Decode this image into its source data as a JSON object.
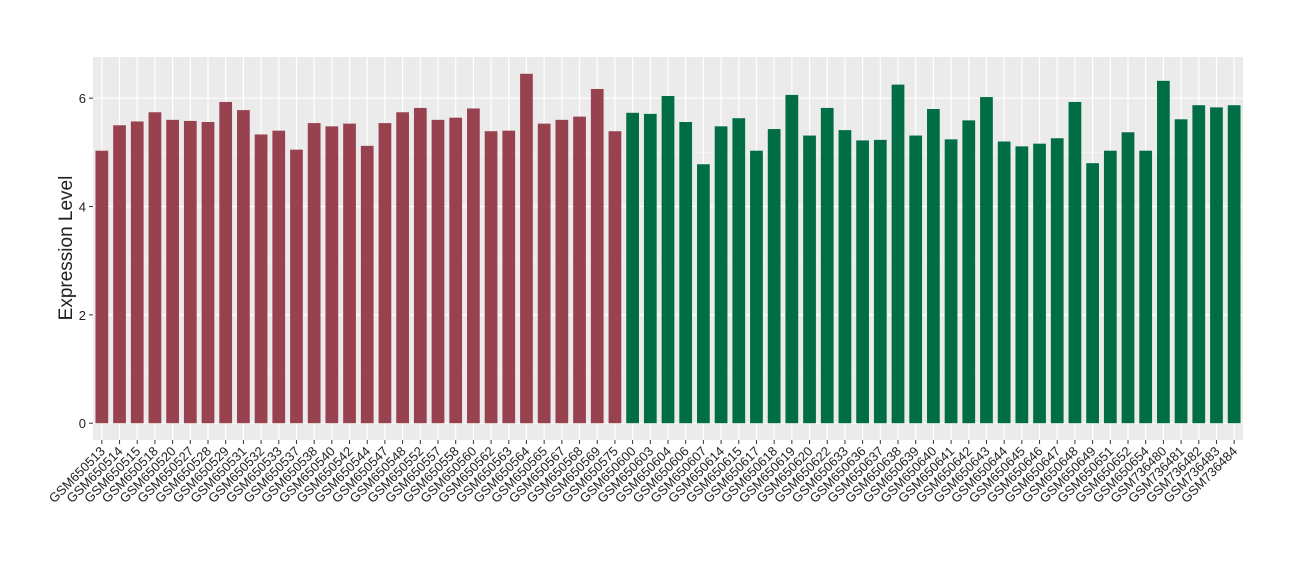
{
  "chart_data": {
    "type": "bar",
    "y_label": "Expression Level",
    "categories": [
      "GSM650513",
      "GSM650514",
      "GSM650515",
      "GSM650518",
      "GSM650520",
      "GSM650527",
      "GSM650528",
      "GSM650529",
      "GSM650531",
      "GSM650532",
      "GSM650533",
      "GSM650537",
      "GSM650538",
      "GSM650540",
      "GSM650542",
      "GSM650544",
      "GSM650547",
      "GSM650548",
      "GSM650552",
      "GSM650557",
      "GSM650558",
      "GSM650560",
      "GSM650562",
      "GSM650563",
      "GSM650564",
      "GSM650565",
      "GSM650567",
      "GSM650568",
      "GSM650569",
      "GSM650575",
      "GSM650600",
      "GSM650603",
      "GSM650604",
      "GSM650606",
      "GSM650607",
      "GSM650614",
      "GSM650615",
      "GSM650617",
      "GSM650618",
      "GSM650619",
      "GSM650620",
      "GSM650622",
      "GSM650633",
      "GSM650636",
      "GSM650637",
      "GSM650638",
      "GSM650639",
      "GSM650640",
      "GSM650641",
      "GSM650642",
      "GSM650643",
      "GSM650644",
      "GSM650645",
      "GSM650646",
      "GSM650647",
      "GSM650648",
      "GSM650649",
      "GSM650651",
      "GSM650652",
      "GSM650654",
      "GSM736480",
      "GSM736481",
      "GSM736482",
      "GSM736483",
      "GSM736484"
    ],
    "values": [
      5.03,
      5.5,
      5.57,
      5.74,
      5.6,
      5.58,
      5.56,
      5.93,
      5.78,
      5.33,
      5.4,
      5.05,
      5.54,
      5.48,
      5.53,
      5.12,
      5.54,
      5.74,
      5.82,
      5.6,
      5.64,
      5.81,
      5.39,
      5.4,
      6.45,
      5.53,
      5.6,
      5.66,
      6.17,
      5.39,
      5.73,
      5.71,
      6.04,
      5.56,
      4.78,
      5.48,
      5.63,
      5.03,
      5.43,
      6.06,
      5.31,
      5.82,
      5.41,
      5.22,
      5.23,
      6.25,
      5.31,
      5.8,
      5.24,
      5.59,
      6.02,
      5.2,
      5.11,
      5.16,
      5.26,
      5.93,
      4.8,
      5.03,
      5.37,
      5.03,
      6.32,
      5.61,
      5.87,
      5.83,
      5.87
    ],
    "colors": [
      "#98424f",
      "#98424f",
      "#98424f",
      "#98424f",
      "#98424f",
      "#98424f",
      "#98424f",
      "#98424f",
      "#98424f",
      "#98424f",
      "#98424f",
      "#98424f",
      "#98424f",
      "#98424f",
      "#98424f",
      "#98424f",
      "#98424f",
      "#98424f",
      "#98424f",
      "#98424f",
      "#98424f",
      "#98424f",
      "#98424f",
      "#98424f",
      "#98424f",
      "#98424f",
      "#98424f",
      "#98424f",
      "#98424f",
      "#98424f",
      "#006d45",
      "#006d45",
      "#006d45",
      "#006d45",
      "#006d45",
      "#006d45",
      "#006d45",
      "#006d45",
      "#006d45",
      "#006d45",
      "#006d45",
      "#006d45",
      "#006d45",
      "#006d45",
      "#006d45",
      "#006d45",
      "#006d45",
      "#006d45",
      "#006d45",
      "#006d45",
      "#006d45",
      "#006d45",
      "#006d45",
      "#006d45",
      "#006d45",
      "#006d45",
      "#006d45",
      "#006d45",
      "#006d45",
      "#006d45",
      "#006d45",
      "#006d45",
      "#006d45",
      "#006d45",
      "#006d45"
    ],
    "ylim": [
      -0.31,
      6.76
    ],
    "yticks": [
      0,
      2,
      4,
      6
    ],
    "grid": true
  }
}
